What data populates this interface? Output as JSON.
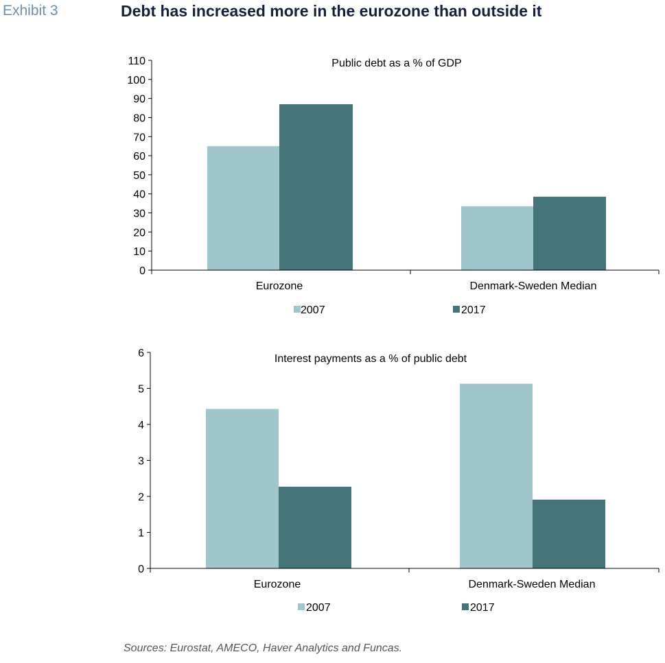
{
  "header": {
    "exhibit": "Exhibit 3",
    "title": "Debt has increased more in the eurozone than outside it"
  },
  "colors": {
    "s2007": "#a0c5ca",
    "s2017": "#45757a"
  },
  "chart_data": [
    {
      "type": "bar",
      "title": "Public debt as a % of GDP",
      "categories": [
        "Eurozone",
        "Denmark-Sweden Median"
      ],
      "series": [
        {
          "name": "2007",
          "values": [
            65,
            33.5
          ]
        },
        {
          "name": "2017",
          "values": [
            87,
            38.5
          ]
        }
      ],
      "yticks": [
        "0",
        "10",
        "20",
        "30",
        "40",
        "50",
        "60",
        "70",
        "80",
        "90",
        "100",
        "110"
      ],
      "ylim": [
        0,
        110
      ],
      "legend": "bottom"
    },
    {
      "type": "bar",
      "title": "Interest payments as a % of public debt",
      "categories": [
        "Eurozone",
        "Denmark-Sweden Median"
      ],
      "series": [
        {
          "name": "2007",
          "values": [
            4.43,
            5.13
          ]
        },
        {
          "name": "2017",
          "values": [
            2.27,
            1.91
          ]
        }
      ],
      "yticks": [
        "0",
        "1",
        "2",
        "3",
        "4",
        "5",
        "6"
      ],
      "ylim": [
        0,
        6
      ],
      "legend": "bottom"
    }
  ],
  "sources": "Sources: Eurostat, AMECO, Haver Analytics and Funcas."
}
